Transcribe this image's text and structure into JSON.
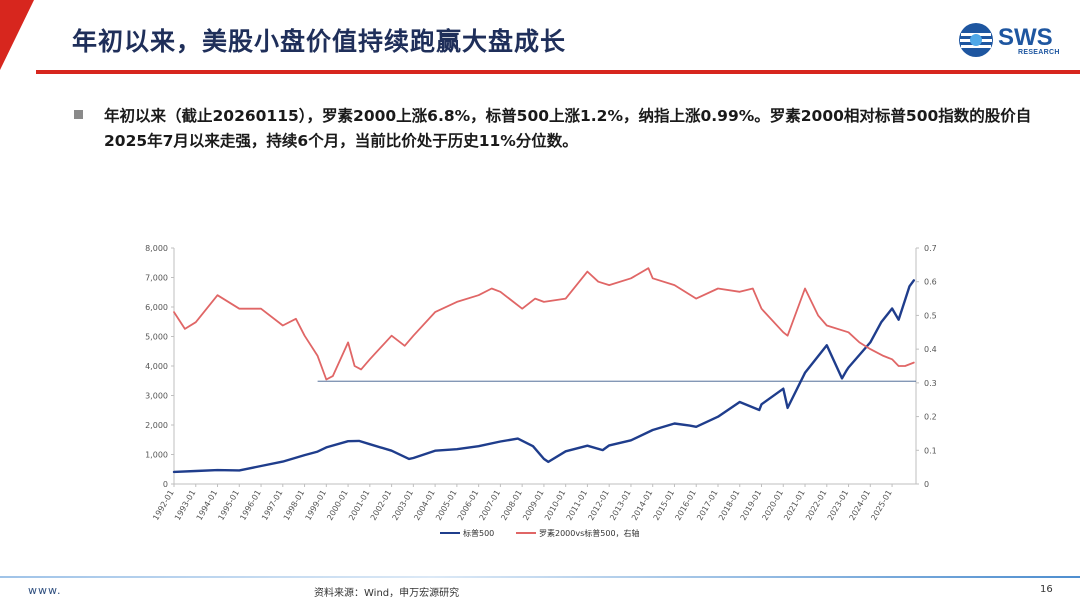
{
  "header": {
    "title": "年初以来，美股小盘价值持续跑赢大盘成长",
    "logo_name": "SWS",
    "logo_sub": "RESEARCH"
  },
  "bullet": {
    "text": "年初以来（截止20260115），罗素2000上涨6.8%，标普500上涨1.2%，纳指上涨0.99%。罗素2000相对标普500指数的股价自2025年7月以来走强，持续6个月，当前比价处于历史11%分位数。"
  },
  "footer": {
    "website": "www.",
    "source": "资料来源：Wind，申万宏源研究",
    "page": "16"
  },
  "colors": {
    "brand_red": "#d7261e",
    "title_navy": "#1f2f5a",
    "logo_blue": "#1e56a0",
    "series_sp500": "#1f3d8c",
    "series_ratio": "#e06666",
    "reference_line": "#3a5a8a"
  },
  "chart_data": {
    "type": "line",
    "x_ticks": [
      "1992-01",
      "1993-01",
      "1994-01",
      "1995-01",
      "1996-01",
      "1997-01",
      "1998-01",
      "1999-01",
      "2000-01",
      "2001-01",
      "2002-01",
      "2003-01",
      "2004-01",
      "2005-01",
      "2006-01",
      "2007-01",
      "2008-01",
      "2009-01",
      "2010-01",
      "2011-01",
      "2012-01",
      "2013-01",
      "2014-01",
      "2015-01",
      "2016-01",
      "2017-01",
      "2018-01",
      "2019-01",
      "2020-01",
      "2021-01",
      "2022-01",
      "2023-01",
      "2024-01",
      "2025-01"
    ],
    "x_range": [
      1992.0,
      2026.1
    ],
    "left_axis": {
      "range": [
        0,
        8000
      ],
      "ticks": [
        "0",
        "1,000",
        "2,000",
        "3,000",
        "4,000",
        "5,000",
        "6,000",
        "7,000",
        "8,000"
      ]
    },
    "right_axis": {
      "range": [
        0,
        0.7
      ],
      "ticks": [
        "0",
        "0.1",
        "0.2",
        "0.3",
        "0.4",
        "0.5",
        "0.6",
        "0.7"
      ]
    },
    "reference_line": {
      "axis": "right",
      "value": 0.305,
      "x_start": 1998.6,
      "x_end": 2026.1
    },
    "series": [
      {
        "name": "标普500",
        "axis": "left",
        "points": [
          [
            1992.0,
            410
          ],
          [
            1993.0,
            440
          ],
          [
            1994.0,
            470
          ],
          [
            1995.0,
            460
          ],
          [
            1996.0,
            610
          ],
          [
            1997.0,
            760
          ],
          [
            1998.0,
            980
          ],
          [
            1998.6,
            1100
          ],
          [
            1999.0,
            1240
          ],
          [
            2000.0,
            1450
          ],
          [
            2000.5,
            1460
          ],
          [
            2001.0,
            1350
          ],
          [
            2002.0,
            1130
          ],
          [
            2002.8,
            850
          ],
          [
            2003.0,
            880
          ],
          [
            2004.0,
            1130
          ],
          [
            2005.0,
            1180
          ],
          [
            2006.0,
            1280
          ],
          [
            2007.0,
            1440
          ],
          [
            2007.8,
            1540
          ],
          [
            2008.5,
            1280
          ],
          [
            2009.0,
            850
          ],
          [
            2009.2,
            750
          ],
          [
            2010.0,
            1110
          ],
          [
            2011.0,
            1300
          ],
          [
            2011.7,
            1150
          ],
          [
            2012.0,
            1310
          ],
          [
            2013.0,
            1480
          ],
          [
            2014.0,
            1830
          ],
          [
            2015.0,
            2050
          ],
          [
            2015.7,
            1980
          ],
          [
            2016.0,
            1940
          ],
          [
            2017.0,
            2280
          ],
          [
            2018.0,
            2780
          ],
          [
            2018.9,
            2510
          ],
          [
            2019.0,
            2700
          ],
          [
            2020.0,
            3230
          ],
          [
            2020.2,
            2580
          ],
          [
            2021.0,
            3770
          ],
          [
            2022.0,
            4700
          ],
          [
            2022.7,
            3580
          ],
          [
            2022.9,
            3840
          ],
          [
            2023.0,
            3950
          ],
          [
            2024.0,
            4800
          ],
          [
            2024.5,
            5480
          ],
          [
            2025.0,
            5950
          ],
          [
            2025.3,
            5570
          ],
          [
            2025.6,
            6240
          ],
          [
            2025.8,
            6700
          ],
          [
            2026.0,
            6900
          ]
        ]
      },
      {
        "name": "罗素2000vs标普500，右轴",
        "axis": "right",
        "points": [
          [
            1992.0,
            0.51
          ],
          [
            1992.5,
            0.46
          ],
          [
            1993.0,
            0.48
          ],
          [
            1994.0,
            0.56
          ],
          [
            1995.0,
            0.52
          ],
          [
            1996.0,
            0.52
          ],
          [
            1997.0,
            0.47
          ],
          [
            1997.6,
            0.49
          ],
          [
            1998.0,
            0.44
          ],
          [
            1998.6,
            0.38
          ],
          [
            1999.0,
            0.31
          ],
          [
            1999.3,
            0.32
          ],
          [
            2000.0,
            0.42
          ],
          [
            2000.3,
            0.35
          ],
          [
            2000.6,
            0.34
          ],
          [
            2001.0,
            0.37
          ],
          [
            2002.0,
            0.44
          ],
          [
            2002.6,
            0.41
          ],
          [
            2003.0,
            0.44
          ],
          [
            2004.0,
            0.51
          ],
          [
            2005.0,
            0.54
          ],
          [
            2006.0,
            0.56
          ],
          [
            2006.6,
            0.58
          ],
          [
            2007.0,
            0.57
          ],
          [
            2008.0,
            0.52
          ],
          [
            2008.6,
            0.55
          ],
          [
            2009.0,
            0.54
          ],
          [
            2010.0,
            0.55
          ],
          [
            2011.0,
            0.63
          ],
          [
            2011.5,
            0.6
          ],
          [
            2012.0,
            0.59
          ],
          [
            2013.0,
            0.61
          ],
          [
            2013.8,
            0.64
          ],
          [
            2014.0,
            0.61
          ],
          [
            2015.0,
            0.59
          ],
          [
            2016.0,
            0.55
          ],
          [
            2017.0,
            0.58
          ],
          [
            2018.0,
            0.57
          ],
          [
            2018.6,
            0.58
          ],
          [
            2019.0,
            0.52
          ],
          [
            2020.0,
            0.45
          ],
          [
            2020.2,
            0.44
          ],
          [
            2021.0,
            0.58
          ],
          [
            2021.6,
            0.5
          ],
          [
            2022.0,
            0.47
          ],
          [
            2023.0,
            0.45
          ],
          [
            2023.5,
            0.42
          ],
          [
            2024.0,
            0.4
          ],
          [
            2024.6,
            0.38
          ],
          [
            2025.0,
            0.37
          ],
          [
            2025.3,
            0.35
          ],
          [
            2025.6,
            0.35
          ],
          [
            2026.0,
            0.36
          ]
        ]
      }
    ],
    "legend_position": "bottom",
    "grid": false
  }
}
